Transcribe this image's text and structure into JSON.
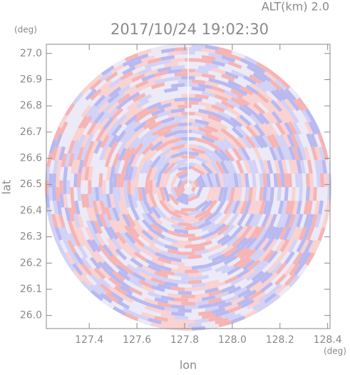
{
  "chart_data": {
    "type": "radar-image",
    "title": "2017/10/24 19:02:30",
    "subtitle": "ALT(km) 2.0",
    "x_label": "lon",
    "y_label": "lat",
    "x_unit": "(deg)",
    "y_unit": "(deg)",
    "xlim": [
      127.22,
      128.41
    ],
    "ylim": [
      25.95,
      27.035
    ],
    "xticks": [
      127.4,
      127.6,
      127.8,
      {
        "value": 128,
        "label": "128.0"
      },
      128.2,
      128.4
    ],
    "yticks": [
      {
        "value": 26,
        "label": "26.0"
      },
      26.1,
      26.2,
      26.3,
      26.4,
      26.5,
      26.6,
      26.7,
      26.8,
      26.9,
      {
        "value": 27,
        "label": "27.0"
      }
    ]
  }
}
